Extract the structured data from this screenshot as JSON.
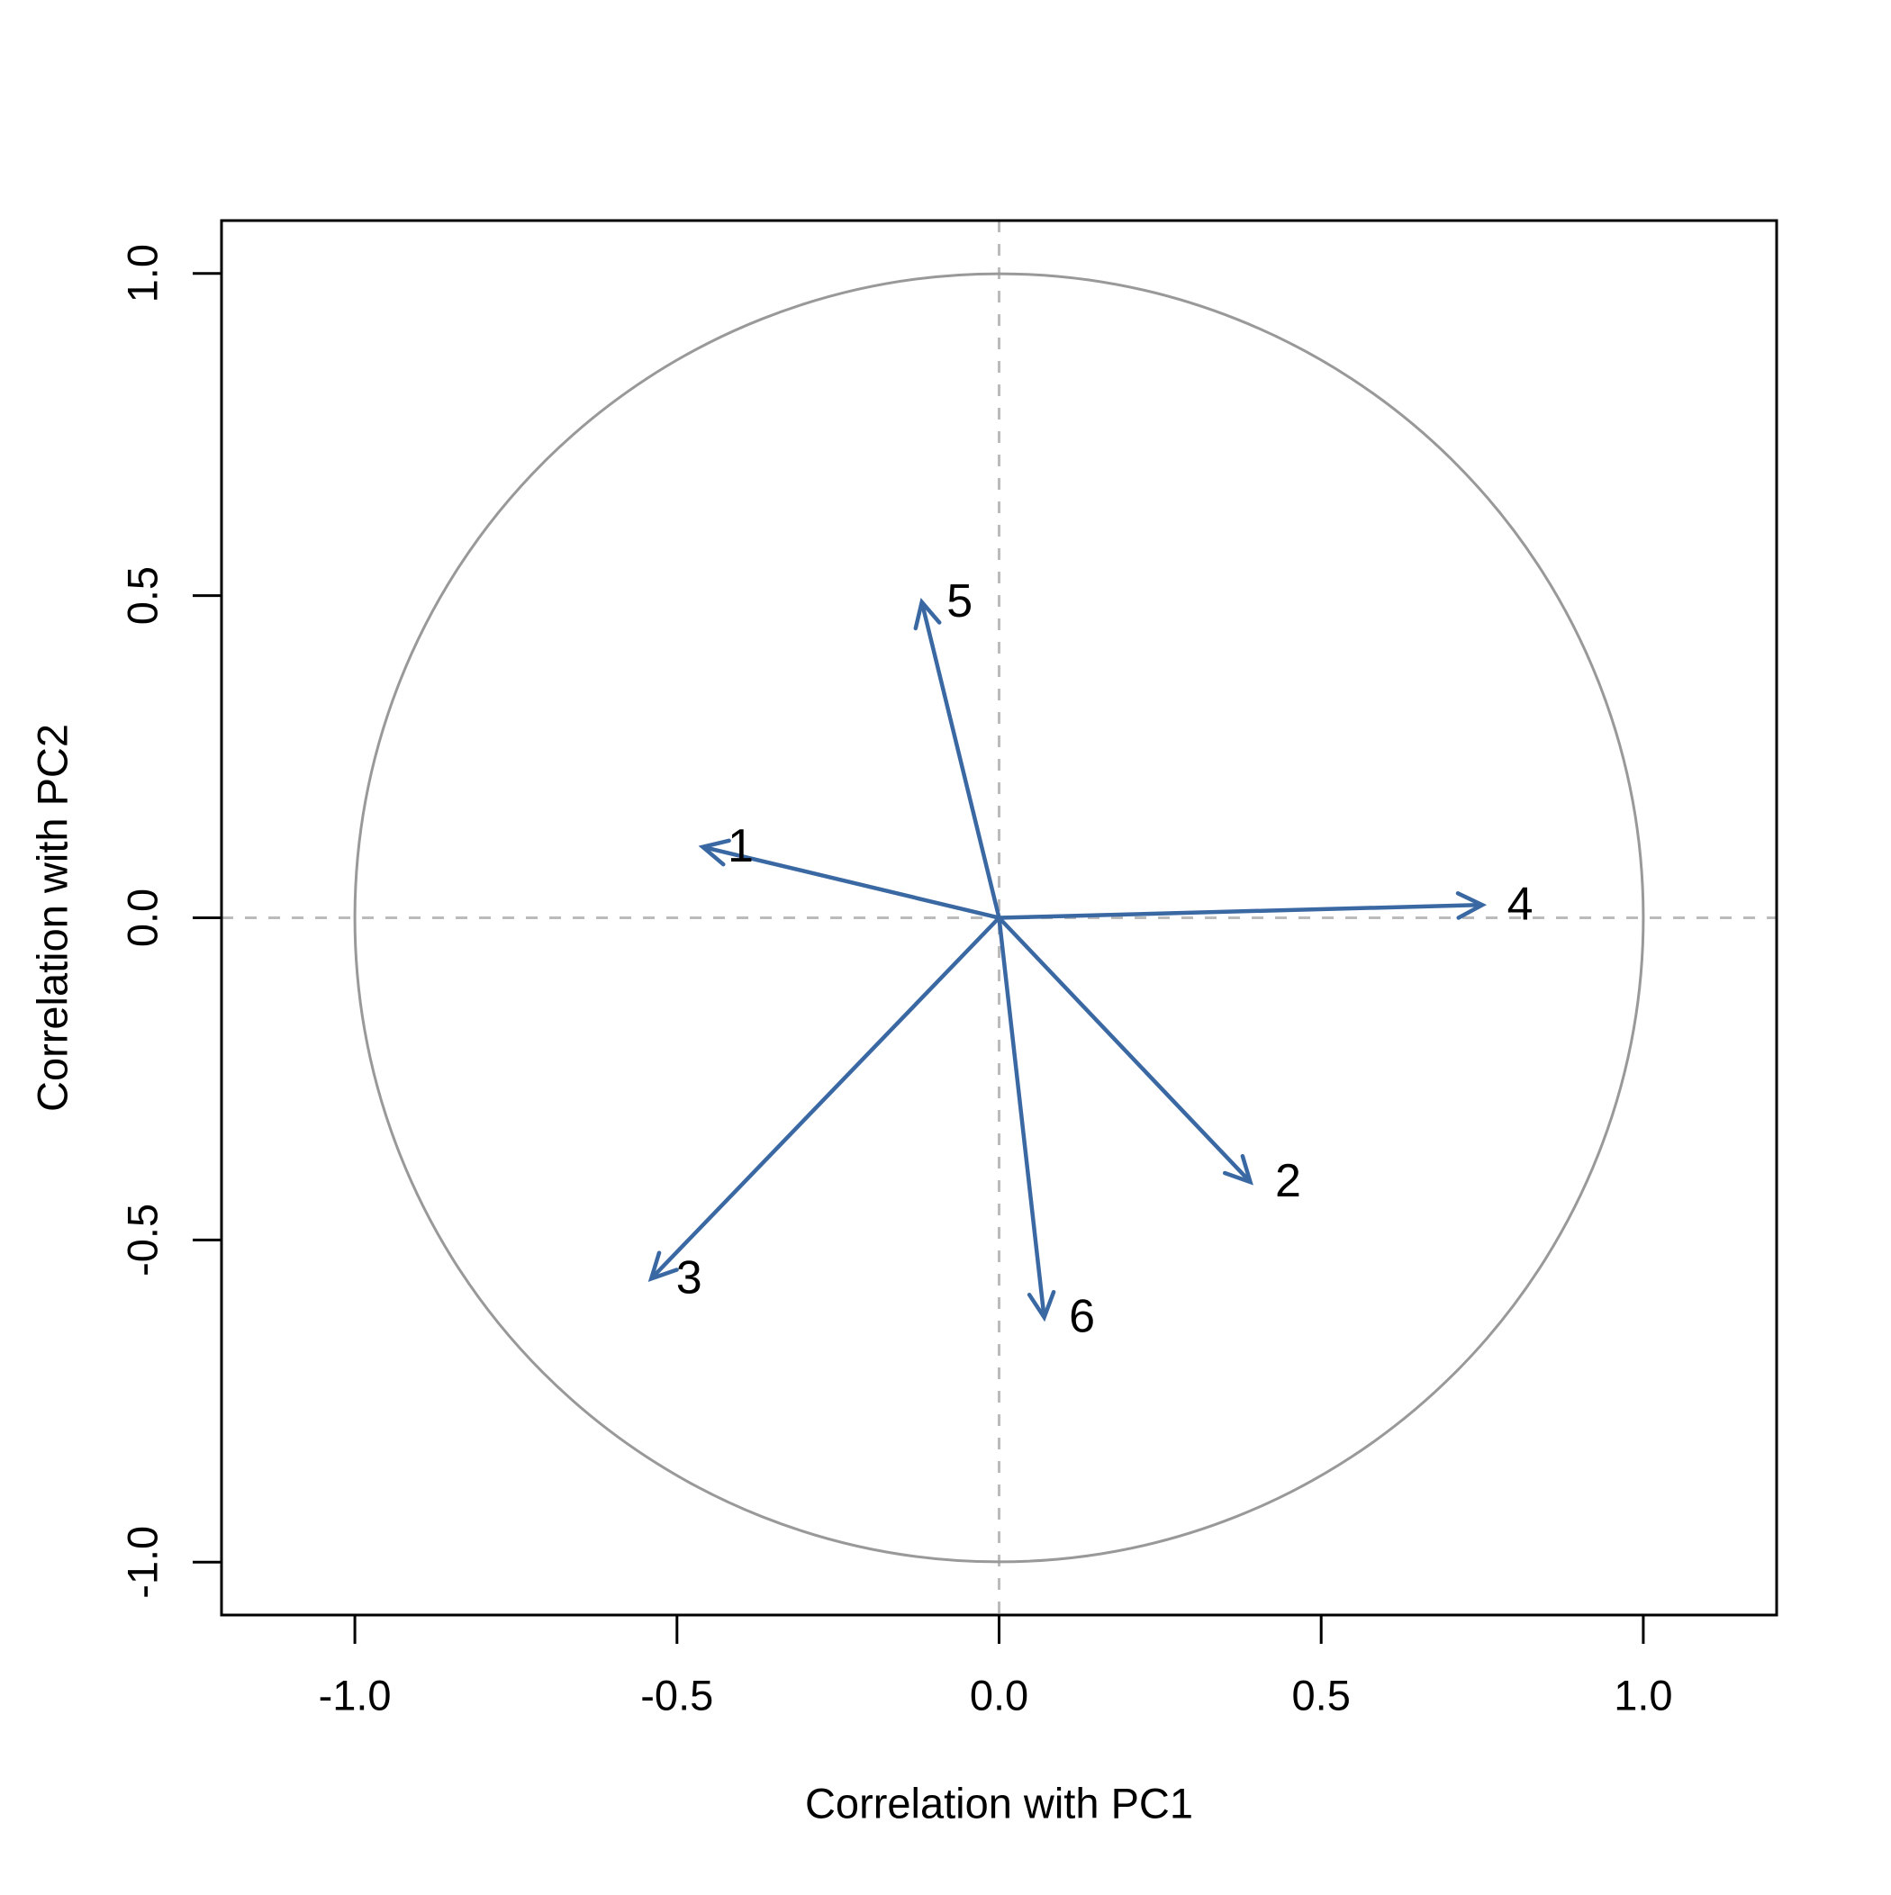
{
  "figure": {
    "background": "#ffffff",
    "description": "PCA variable correlation circle plot"
  },
  "chart_data": {
    "type": "scatter",
    "subtype": "pca_correlation_circle",
    "title": "",
    "xlabel": "Correlation with PC1",
    "ylabel": "Correlation with PC2",
    "xlim": [
      -1.207,
      1.207
    ],
    "ylim": [
      -1.082,
      1.082
    ],
    "grid": false,
    "legend": "none",
    "x_ticks": {
      "values": [
        -1.0,
        -0.5,
        0.0,
        0.5,
        1.0
      ],
      "labels": [
        "-1.0",
        "-0.5",
        "0.0",
        "0.5",
        "1.0"
      ]
    },
    "y_ticks": {
      "values": [
        -1.0,
        -0.5,
        0.0,
        0.5,
        1.0
      ],
      "labels": [
        "-1.0",
        "-0.5",
        "0.0",
        "0.5",
        "1.0"
      ]
    },
    "unit_circle": {
      "cx": 0,
      "cy": 0,
      "radius": 1.0
    },
    "zero_lines": {
      "horizontal_y": 0,
      "vertical_x": 0,
      "style": "dashed"
    },
    "arrows": [
      {
        "label": "1",
        "x": -0.46,
        "y": 0.11
      },
      {
        "label": "2",
        "x": 0.39,
        "y": -0.41
      },
      {
        "label": "3",
        "x": -0.54,
        "y": -0.56
      },
      {
        "label": "4",
        "x": 0.75,
        "y": 0.02
      },
      {
        "label": "5",
        "x": -0.12,
        "y": 0.49
      },
      {
        "label": "6",
        "x": 0.07,
        "y": -0.62
      }
    ],
    "colors": {
      "arrow": "#3A68A3",
      "circle": "#999999",
      "zero_line": "#BBBBBB",
      "axis": "#000000",
      "text": "#000000"
    }
  }
}
